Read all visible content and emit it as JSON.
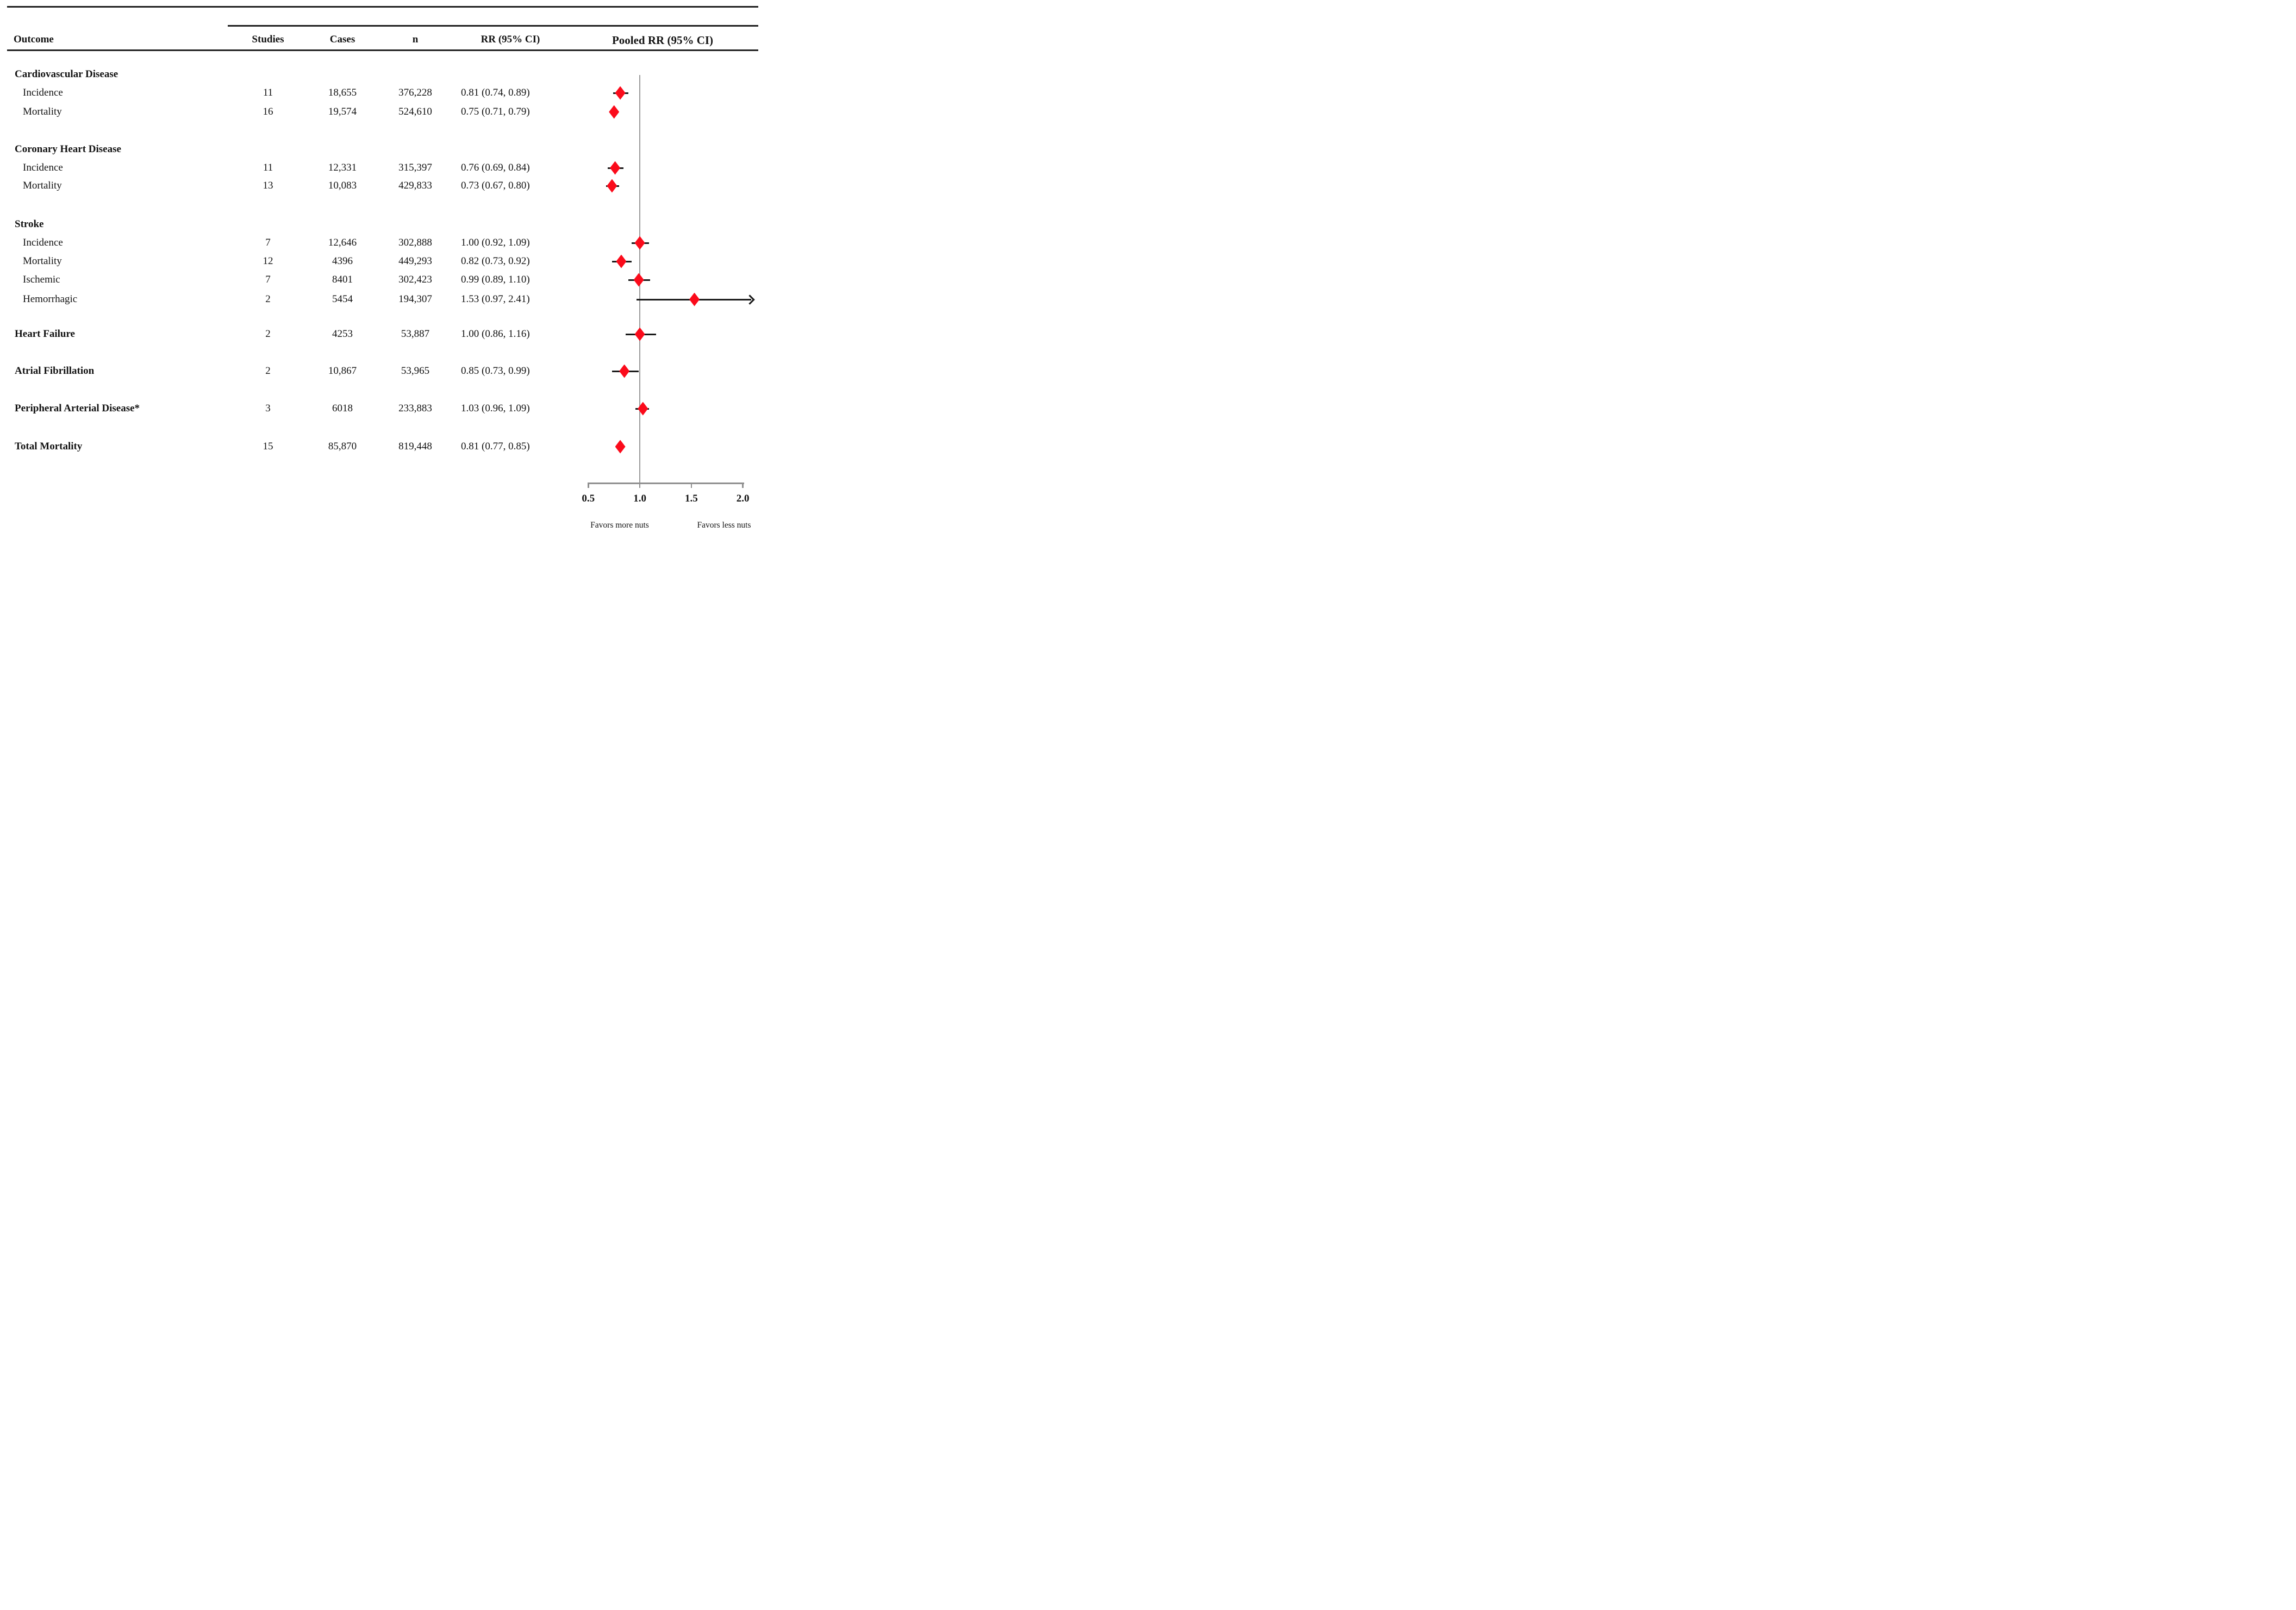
{
  "header": {
    "outcome": "Outcome",
    "studies": "Studies",
    "cases": "Cases",
    "n": "n",
    "rr": "RR (95% CI)",
    "pooled": "Pooled RR (95% CI)"
  },
  "colors": {
    "diamond": "#fb0b1b",
    "ci_line": "#1a1a1a",
    "reference_line": "#9b9b9b",
    "axis": "#8f8f8f",
    "text": "#121212"
  },
  "chart_data": {
    "type": "forest",
    "title": "",
    "x_axis": {
      "scale": "linear",
      "min": 0.5,
      "max": 2.0,
      "ticks": [
        0.5,
        1.0,
        1.5,
        2.0
      ],
      "tick_labels": [
        "0.5",
        "1.0",
        "1.5",
        "2.0"
      ],
      "ref_line": 1.0,
      "favors_left": "Favors more nuts",
      "favors_right": "Favors less nuts"
    },
    "rows": [
      {
        "label": "Cardiovascular Disease",
        "group": true
      },
      {
        "label": "Incidence",
        "studies": "11",
        "cases": "18,655",
        "n": "376,228",
        "rr_text": "0.81 (0.74, 0.89)",
        "rr": 0.81,
        "lo": 0.74,
        "hi": 0.89
      },
      {
        "label": "Mortality",
        "studies": "16",
        "cases": "19,574",
        "n": "524,610",
        "rr_text": "0.75 (0.71, 0.79)",
        "rr": 0.75,
        "lo": 0.71,
        "hi": 0.79
      },
      {
        "label": "Coronary Heart Disease",
        "group": true
      },
      {
        "label": "Incidence",
        "studies": "11",
        "cases": "12,331",
        "n": "315,397",
        "rr_text": "0.76 (0.69, 0.84)",
        "rr": 0.76,
        "lo": 0.69,
        "hi": 0.84
      },
      {
        "label": "Mortality",
        "studies": "13",
        "cases": "10,083",
        "n": "429,833",
        "rr_text": "0.73 (0.67, 0.80)",
        "rr": 0.73,
        "lo": 0.67,
        "hi": 0.8
      },
      {
        "label": "Stroke",
        "group": true
      },
      {
        "label": "Incidence",
        "studies": "7",
        "cases": "12,646",
        "n": "302,888",
        "rr_text": "1.00 (0.92, 1.09)",
        "rr": 1.0,
        "lo": 0.92,
        "hi": 1.09
      },
      {
        "label": "Mortality",
        "studies": "12",
        "cases": "4396",
        "n": "449,293",
        "rr_text": "0.82 (0.73, 0.92)",
        "rr": 0.82,
        "lo": 0.73,
        "hi": 0.92
      },
      {
        "label": "Ischemic",
        "studies": "7",
        "cases": "8401",
        "n": "302,423",
        "rr_text": "0.99 (0.89, 1.10)",
        "rr": 0.99,
        "lo": 0.89,
        "hi": 1.1
      },
      {
        "label": "Hemorrhagic",
        "studies": "2",
        "cases": "5454",
        "n": "194,307",
        "rr_text": "1.53 (0.97, 2.41)",
        "rr": 1.53,
        "lo": 0.97,
        "hi": 2.41,
        "arrow": true
      },
      {
        "label": "Heart Failure",
        "group": true,
        "studies": "2",
        "cases": "4253",
        "n": "53,887",
        "rr_text": "1.00 (0.86, 1.16)",
        "rr": 1.0,
        "lo": 0.86,
        "hi": 1.16
      },
      {
        "label": "Atrial Fibrillation",
        "group": true,
        "studies": "2",
        "cases": "10,867",
        "n": "53,965",
        "rr_text": "0.85 (0.73, 0.99)",
        "rr": 0.85,
        "lo": 0.73,
        "hi": 0.99
      },
      {
        "label": "Peripheral Arterial Disease*",
        "group": true,
        "studies": "3",
        "cases": "6018",
        "n": "233,883",
        "rr_text": "1.03 (0.96, 1.09)",
        "rr": 1.03,
        "lo": 0.96,
        "hi": 1.09
      },
      {
        "label": "Total Mortality",
        "group": true,
        "studies": "15",
        "cases": "85,870",
        "n": "819,448",
        "rr_text": "0.81 (0.77, 0.85)",
        "rr": 0.81,
        "lo": 0.77,
        "hi": 0.85
      }
    ]
  }
}
